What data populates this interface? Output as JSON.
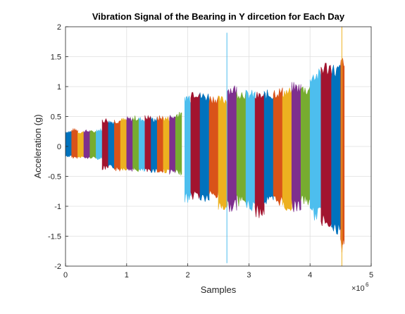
{
  "chart_data": {
    "type": "area",
    "title": "Vibration Signal of the Bearing in Y dircetion for Each Day",
    "xlabel": "Samples",
    "ylabel": "Acceleration (g)",
    "x_exponent_base": "×10",
    "x_exponent_power": "6",
    "xlim": [
      0,
      5
    ],
    "ylim": [
      -2,
      2
    ],
    "xticks": [
      0,
      1,
      2,
      3,
      4,
      5
    ],
    "xtick_labels": [
      "0",
      "1",
      "2",
      "3",
      "4",
      "5"
    ],
    "yticks": [
      -2,
      -1.5,
      -1,
      -0.5,
      0,
      0.5,
      1,
      1.5,
      2
    ],
    "ytick_labels": [
      "-2",
      "-1.5",
      "-1",
      "-0.5",
      "0",
      "0.5",
      "1",
      "1.5",
      "2"
    ],
    "grid": true,
    "palette": [
      "#0072BD",
      "#D95319",
      "#EDB120",
      "#7E2F8E",
      "#77AC30",
      "#4DBEEE",
      "#A2142F"
    ],
    "segments": [
      {
        "x_start": 0.0,
        "x_end": 0.1,
        "max": 0.27,
        "min": -0.18
      },
      {
        "x_start": 0.1,
        "x_end": 0.2,
        "max": 0.3,
        "min": -0.2
      },
      {
        "x_start": 0.2,
        "x_end": 0.3,
        "max": 0.26,
        "min": -0.19
      },
      {
        "x_start": 0.3,
        "x_end": 0.4,
        "max": 0.28,
        "min": -0.21
      },
      {
        "x_start": 0.4,
        "x_end": 0.5,
        "max": 0.27,
        "min": -0.2
      },
      {
        "x_start": 0.5,
        "x_end": 0.6,
        "max": 0.3,
        "min": -0.22
      },
      {
        "x_start": 0.6,
        "x_end": 0.7,
        "max": 0.48,
        "min": -0.4
      },
      {
        "x_start": 0.7,
        "x_end": 0.8,
        "max": 0.45,
        "min": -0.38
      },
      {
        "x_start": 0.8,
        "x_end": 0.9,
        "max": 0.47,
        "min": -0.42
      },
      {
        "x_start": 0.9,
        "x_end": 1.0,
        "max": 0.48,
        "min": -0.4
      },
      {
        "x_start": 1.0,
        "x_end": 1.1,
        "max": 0.5,
        "min": -0.42
      },
      {
        "x_start": 1.1,
        "x_end": 1.2,
        "max": 0.52,
        "min": -0.43
      },
      {
        "x_start": 1.2,
        "x_end": 1.3,
        "max": 0.5,
        "min": -0.44
      },
      {
        "x_start": 1.3,
        "x_end": 1.4,
        "max": 0.53,
        "min": -0.45
      },
      {
        "x_start": 1.4,
        "x_end": 1.5,
        "max": 0.5,
        "min": -0.44
      },
      {
        "x_start": 1.5,
        "x_end": 1.6,
        "max": 0.52,
        "min": -0.46
      },
      {
        "x_start": 1.6,
        "x_end": 1.7,
        "max": 0.51,
        "min": -0.45
      },
      {
        "x_start": 1.7,
        "x_end": 1.8,
        "max": 0.54,
        "min": -0.47
      },
      {
        "x_start": 1.8,
        "x_end": 1.9,
        "max": 0.58,
        "min": -0.48
      },
      {
        "x_start": 1.95,
        "x_end": 2.05,
        "max": 0.9,
        "min": -0.95
      },
      {
        "x_start": 2.05,
        "x_end": 2.2,
        "max": 1.0,
        "min": -0.9
      },
      {
        "x_start": 2.2,
        "x_end": 2.35,
        "max": 0.92,
        "min": -0.95
      },
      {
        "x_start": 2.35,
        "x_end": 2.5,
        "max": 0.88,
        "min": -0.9
      },
      {
        "x_start": 2.5,
        "x_end": 2.65,
        "max": 0.85,
        "min": -1.1
      },
      {
        "x_start": 2.65,
        "x_end": 2.8,
        "max": 1.05,
        "min": -1.1
      },
      {
        "x_start": 2.8,
        "x_end": 2.95,
        "max": 0.98,
        "min": -1.0
      },
      {
        "x_start": 2.95,
        "x_end": 3.1,
        "max": 0.95,
        "min": -1.1
      },
      {
        "x_start": 3.1,
        "x_end": 3.25,
        "max": 0.92,
        "min": -1.2
      },
      {
        "x_start": 3.25,
        "x_end": 3.4,
        "max": 0.95,
        "min": -1.0
      },
      {
        "x_start": 3.4,
        "x_end": 3.55,
        "max": 1.0,
        "min": -1.0
      },
      {
        "x_start": 3.55,
        "x_end": 3.7,
        "max": 1.0,
        "min": -1.1
      },
      {
        "x_start": 3.7,
        "x_end": 3.85,
        "max": 1.08,
        "min": -1.1
      },
      {
        "x_start": 3.85,
        "x_end": 4.0,
        "max": 1.05,
        "min": -1.0
      },
      {
        "x_start": 4.0,
        "x_end": 4.18,
        "max": 1.3,
        "min": -1.25
      },
      {
        "x_start": 4.18,
        "x_end": 4.35,
        "max": 1.45,
        "min": -1.35
      },
      {
        "x_start": 4.35,
        "x_end": 4.5,
        "max": 1.4,
        "min": -1.55
      },
      {
        "x_start": 4.5,
        "x_end": 4.56,
        "max": 1.5,
        "min": -1.85
      }
    ],
    "spikes": [
      {
        "x": 2.64,
        "max": 1.9,
        "min": -1.95,
        "color": "#4DBEEE"
      },
      {
        "x": 4.52,
        "max": 2.0,
        "min": -2.0,
        "color": "#EDB120"
      }
    ]
  }
}
